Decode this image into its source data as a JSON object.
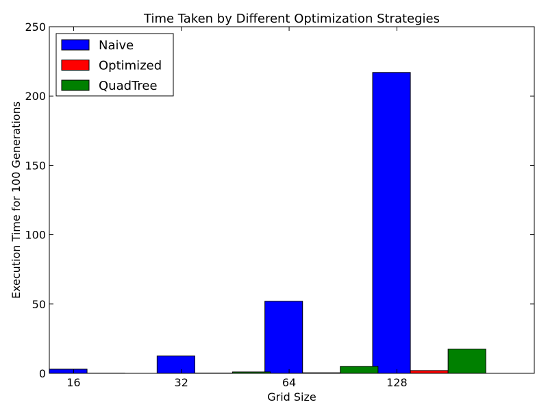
{
  "chart_data": {
    "type": "bar",
    "title": "Time Taken by Different Optimization Strategies",
    "xlabel": "Grid Size",
    "ylabel": "Execution Time for 100 Generations",
    "xlim": [
      0,
      4.5
    ],
    "ylim": [
      0,
      250
    ],
    "yticks": [
      0,
      50,
      100,
      150,
      200,
      250
    ],
    "xtick_positions": [
      0.225,
      1.225,
      2.225,
      3.225
    ],
    "xtick_labels": [
      "16",
      "32",
      "64",
      "128"
    ],
    "bar_width": 0.35,
    "legend_position": "top-left",
    "grid": false,
    "series": [
      {
        "name": "Naive",
        "color": "#0000ff",
        "x": [
          0,
          1,
          2,
          3
        ],
        "values": [
          3,
          12.5,
          52,
          217
        ]
      },
      {
        "name": "Optimized",
        "color": "#ff0000",
        "x": [
          0.35,
          1.35,
          2.35,
          3.35
        ],
        "values": [
          0.1,
          0.2,
          0.4,
          2
        ]
      },
      {
        "name": "QuadTree",
        "color": "#008000",
        "x": [
          1.7,
          2.7,
          3.7
        ],
        "values": [
          1,
          5,
          17.5
        ]
      }
    ]
  }
}
